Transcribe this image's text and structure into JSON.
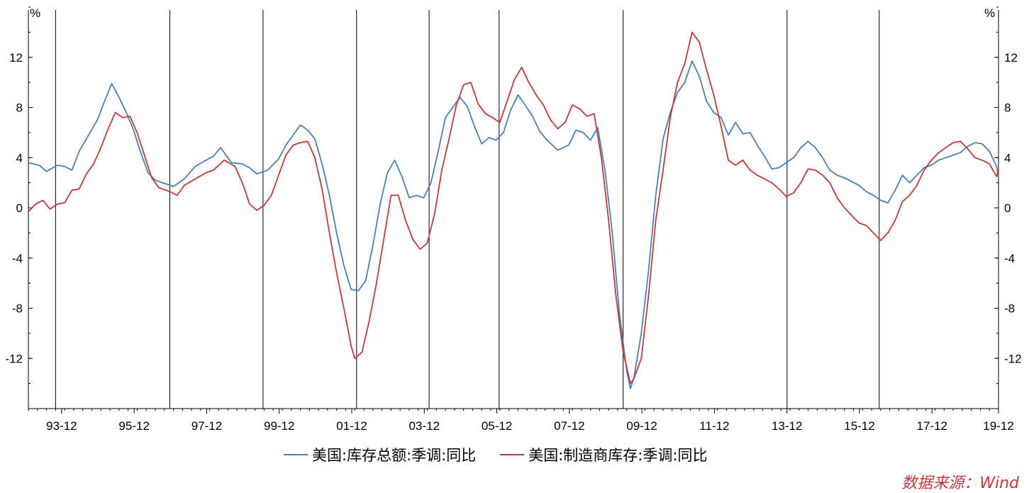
{
  "chart_data": {
    "type": "line",
    "y_unit_left": "%",
    "y_unit_right": "%",
    "ylim": [
      -16,
      16
    ],
    "y_ticks": [
      12,
      8,
      4,
      0,
      -4,
      -8,
      -12
    ],
    "x_range": [
      1993.0,
      2019.75
    ],
    "x_tick_labels": [
      "93-12",
      "95-12",
      "97-12",
      "99-12",
      "01-12",
      "03-12",
      "05-12",
      "07-12",
      "09-12",
      "11-12",
      "13-12",
      "15-12",
      "17-12",
      "19-12"
    ],
    "x_tick_values": [
      1993.917,
      1995.917,
      1997.917,
      1999.917,
      2001.917,
      2003.917,
      2005.917,
      2007.917,
      2009.917,
      2011.917,
      2013.917,
      2015.917,
      2017.917,
      2019.917
    ],
    "vertical_markers": [
      1993.75,
      1996.9,
      1999.47,
      2002.05,
      2004.05,
      2005.98,
      2009.4,
      2013.92,
      2016.46,
      2019.75
    ],
    "series": [
      {
        "name": "美国:库存总额:季调:同比",
        "color": "#4a7fb5",
        "points": [
          [
            1993.0,
            3.6
          ],
          [
            1993.3,
            3.4
          ],
          [
            1993.5,
            2.9
          ],
          [
            1993.8,
            3.4
          ],
          [
            1994.0,
            3.3
          ],
          [
            1994.2,
            3.0
          ],
          [
            1994.4,
            4.5
          ],
          [
            1994.7,
            6.0
          ],
          [
            1994.9,
            7.0
          ],
          [
            1995.1,
            8.5
          ],
          [
            1995.3,
            9.9
          ],
          [
            1995.5,
            8.8
          ],
          [
            1995.7,
            7.6
          ],
          [
            1995.9,
            6.2
          ],
          [
            1996.1,
            4.4
          ],
          [
            1996.3,
            2.8
          ],
          [
            1996.5,
            2.2
          ],
          [
            1996.8,
            1.9
          ],
          [
            1997.0,
            1.7
          ],
          [
            1997.3,
            2.3
          ],
          [
            1997.6,
            3.3
          ],
          [
            1997.9,
            3.8
          ],
          [
            1998.1,
            4.1
          ],
          [
            1998.3,
            4.8
          ],
          [
            1998.6,
            3.6
          ],
          [
            1998.9,
            3.5
          ],
          [
            1999.1,
            3.2
          ],
          [
            1999.3,
            2.7
          ],
          [
            1999.6,
            3.0
          ],
          [
            1999.9,
            3.9
          ],
          [
            2000.1,
            5.0
          ],
          [
            2000.3,
            5.8
          ],
          [
            2000.5,
            6.6
          ],
          [
            2000.7,
            6.2
          ],
          [
            2000.9,
            5.5
          ],
          [
            2001.1,
            3.5
          ],
          [
            2001.3,
            1.0
          ],
          [
            2001.5,
            -2.0
          ],
          [
            2001.7,
            -4.6
          ],
          [
            2001.9,
            -6.5
          ],
          [
            2002.1,
            -6.6
          ],
          [
            2002.3,
            -5.8
          ],
          [
            2002.5,
            -3.0
          ],
          [
            2002.7,
            0.3
          ],
          [
            2002.9,
            2.8
          ],
          [
            2003.1,
            3.8
          ],
          [
            2003.3,
            2.5
          ],
          [
            2003.5,
            0.8
          ],
          [
            2003.7,
            1.0
          ],
          [
            2003.9,
            0.8
          ],
          [
            2004.1,
            2.0
          ],
          [
            2004.3,
            4.5
          ],
          [
            2004.5,
            7.2
          ],
          [
            2004.7,
            8.0
          ],
          [
            2004.9,
            8.8
          ],
          [
            2005.1,
            8.1
          ],
          [
            2005.3,
            6.5
          ],
          [
            2005.5,
            5.1
          ],
          [
            2005.7,
            5.6
          ],
          [
            2005.9,
            5.4
          ],
          [
            2006.1,
            6.0
          ],
          [
            2006.3,
            7.8
          ],
          [
            2006.5,
            9.0
          ],
          [
            2006.7,
            8.2
          ],
          [
            2006.9,
            7.3
          ],
          [
            2007.1,
            6.1
          ],
          [
            2007.3,
            5.4
          ],
          [
            2007.6,
            4.6
          ],
          [
            2007.9,
            5.0
          ],
          [
            2008.1,
            6.2
          ],
          [
            2008.3,
            6.0
          ],
          [
            2008.5,
            5.4
          ],
          [
            2008.7,
            6.4
          ],
          [
            2008.9,
            3.0
          ],
          [
            2009.1,
            -2.0
          ],
          [
            2009.3,
            -8.5
          ],
          [
            2009.5,
            -13.0
          ],
          [
            2009.6,
            -14.4
          ],
          [
            2009.7,
            -13.5
          ],
          [
            2009.9,
            -10.0
          ],
          [
            2010.1,
            -5.0
          ],
          [
            2010.3,
            1.0
          ],
          [
            2010.5,
            5.5
          ],
          [
            2010.7,
            7.6
          ],
          [
            2010.9,
            9.2
          ],
          [
            2011.1,
            10.0
          ],
          [
            2011.3,
            11.7
          ],
          [
            2011.5,
            10.5
          ],
          [
            2011.7,
            8.5
          ],
          [
            2011.9,
            7.6
          ],
          [
            2012.1,
            7.2
          ],
          [
            2012.3,
            5.8
          ],
          [
            2012.5,
            6.8
          ],
          [
            2012.7,
            5.9
          ],
          [
            2012.9,
            6.0
          ],
          [
            2013.1,
            5.0
          ],
          [
            2013.3,
            4.1
          ],
          [
            2013.5,
            3.1
          ],
          [
            2013.7,
            3.2
          ],
          [
            2013.9,
            3.6
          ],
          [
            2014.1,
            4.0
          ],
          [
            2014.3,
            4.8
          ],
          [
            2014.5,
            5.3
          ],
          [
            2014.7,
            4.8
          ],
          [
            2014.9,
            4.0
          ],
          [
            2015.1,
            3.0
          ],
          [
            2015.3,
            2.6
          ],
          [
            2015.5,
            2.4
          ],
          [
            2015.7,
            2.1
          ],
          [
            2015.9,
            1.8
          ],
          [
            2016.1,
            1.3
          ],
          [
            2016.3,
            1.0
          ],
          [
            2016.5,
            0.6
          ],
          [
            2016.7,
            0.4
          ],
          [
            2016.9,
            1.4
          ],
          [
            2017.1,
            2.6
          ],
          [
            2017.3,
            2.0
          ],
          [
            2017.5,
            2.6
          ],
          [
            2017.7,
            3.2
          ],
          [
            2017.9,
            3.4
          ],
          [
            2018.1,
            3.8
          ],
          [
            2018.3,
            4.0
          ],
          [
            2018.5,
            4.2
          ],
          [
            2018.7,
            4.4
          ],
          [
            2018.9,
            4.9
          ],
          [
            2019.1,
            5.2
          ],
          [
            2019.3,
            5.1
          ],
          [
            2019.5,
            4.5
          ],
          [
            2019.7,
            3.3
          ],
          [
            2019.75,
            2.4
          ]
        ]
      },
      {
        "name": "美国:制造商库存:季调:同比",
        "color": "#c0393b",
        "points": [
          [
            1993.0,
            -0.3
          ],
          [
            1993.2,
            0.3
          ],
          [
            1993.4,
            0.6
          ],
          [
            1993.6,
            -0.1
          ],
          [
            1993.8,
            0.3
          ],
          [
            1994.0,
            0.4
          ],
          [
            1994.2,
            1.4
          ],
          [
            1994.4,
            1.5
          ],
          [
            1994.6,
            2.7
          ],
          [
            1994.8,
            3.5
          ],
          [
            1995.0,
            4.8
          ],
          [
            1995.2,
            6.3
          ],
          [
            1995.4,
            7.6
          ],
          [
            1995.6,
            7.2
          ],
          [
            1995.8,
            7.3
          ],
          [
            1996.0,
            6.0
          ],
          [
            1996.2,
            4.2
          ],
          [
            1996.4,
            2.4
          ],
          [
            1996.6,
            1.6
          ],
          [
            1996.9,
            1.3
          ],
          [
            1997.1,
            1.0
          ],
          [
            1997.3,
            1.8
          ],
          [
            1997.6,
            2.3
          ],
          [
            1997.9,
            2.8
          ],
          [
            1998.1,
            3.0
          ],
          [
            1998.4,
            3.8
          ],
          [
            1998.7,
            3.3
          ],
          [
            1998.9,
            2.0
          ],
          [
            1999.1,
            0.3
          ],
          [
            1999.3,
            -0.2
          ],
          [
            1999.5,
            0.2
          ],
          [
            1999.7,
            1.0
          ],
          [
            1999.9,
            2.6
          ],
          [
            2000.1,
            4.2
          ],
          [
            2000.3,
            5.0
          ],
          [
            2000.5,
            5.2
          ],
          [
            2000.7,
            5.3
          ],
          [
            2000.9,
            4.0
          ],
          [
            2001.1,
            1.5
          ],
          [
            2001.3,
            -2.0
          ],
          [
            2001.5,
            -5.2
          ],
          [
            2001.7,
            -8.0
          ],
          [
            2001.9,
            -11.0
          ],
          [
            2002.0,
            -12.0
          ],
          [
            2002.2,
            -11.5
          ],
          [
            2002.4,
            -9.0
          ],
          [
            2002.6,
            -6.0
          ],
          [
            2002.8,
            -2.5
          ],
          [
            2003.0,
            1.0
          ],
          [
            2003.2,
            1.0
          ],
          [
            2003.4,
            -1.0
          ],
          [
            2003.6,
            -2.5
          ],
          [
            2003.8,
            -3.3
          ],
          [
            2004.0,
            -2.8
          ],
          [
            2004.2,
            -0.5
          ],
          [
            2004.4,
            3.0
          ],
          [
            2004.6,
            5.5
          ],
          [
            2004.8,
            8.2
          ],
          [
            2005.0,
            9.8
          ],
          [
            2005.2,
            10.0
          ],
          [
            2005.4,
            8.3
          ],
          [
            2005.6,
            7.5
          ],
          [
            2005.8,
            7.2
          ],
          [
            2006.0,
            6.8
          ],
          [
            2006.2,
            8.5
          ],
          [
            2006.4,
            10.2
          ],
          [
            2006.6,
            11.2
          ],
          [
            2006.8,
            10.0
          ],
          [
            2007.0,
            9.0
          ],
          [
            2007.2,
            8.2
          ],
          [
            2007.4,
            7.0
          ],
          [
            2007.6,
            6.3
          ],
          [
            2007.8,
            6.8
          ],
          [
            2008.0,
            8.2
          ],
          [
            2008.2,
            7.9
          ],
          [
            2008.4,
            7.3
          ],
          [
            2008.6,
            7.5
          ],
          [
            2008.8,
            4.0
          ],
          [
            2009.0,
            -1.0
          ],
          [
            2009.2,
            -7.0
          ],
          [
            2009.4,
            -11.5
          ],
          [
            2009.6,
            -14.0
          ],
          [
            2009.7,
            -13.6
          ],
          [
            2009.9,
            -12.0
          ],
          [
            2010.1,
            -7.0
          ],
          [
            2010.3,
            -1.0
          ],
          [
            2010.5,
            3.0
          ],
          [
            2010.7,
            7.2
          ],
          [
            2010.9,
            10.0
          ],
          [
            2011.1,
            11.5
          ],
          [
            2011.3,
            14.0
          ],
          [
            2011.5,
            13.2
          ],
          [
            2011.7,
            11.0
          ],
          [
            2011.9,
            9.0
          ],
          [
            2012.1,
            6.5
          ],
          [
            2012.3,
            3.8
          ],
          [
            2012.5,
            3.4
          ],
          [
            2012.7,
            3.8
          ],
          [
            2012.9,
            3.0
          ],
          [
            2013.1,
            2.6
          ],
          [
            2013.3,
            2.3
          ],
          [
            2013.5,
            2.0
          ],
          [
            2013.7,
            1.5
          ],
          [
            2013.9,
            0.9
          ],
          [
            2014.1,
            1.2
          ],
          [
            2014.3,
            2.0
          ],
          [
            2014.5,
            3.1
          ],
          [
            2014.7,
            3.0
          ],
          [
            2014.9,
            2.6
          ],
          [
            2015.1,
            2.0
          ],
          [
            2015.3,
            0.8
          ],
          [
            2015.5,
            0.0
          ],
          [
            2015.7,
            -0.6
          ],
          [
            2015.9,
            -1.2
          ],
          [
            2016.1,
            -1.4
          ],
          [
            2016.3,
            -2.0
          ],
          [
            2016.5,
            -2.6
          ],
          [
            2016.7,
            -2.0
          ],
          [
            2016.9,
            -1.0
          ],
          [
            2017.1,
            0.5
          ],
          [
            2017.3,
            1.0
          ],
          [
            2017.5,
            1.8
          ],
          [
            2017.7,
            3.0
          ],
          [
            2017.9,
            3.8
          ],
          [
            2018.1,
            4.4
          ],
          [
            2018.3,
            4.8
          ],
          [
            2018.5,
            5.2
          ],
          [
            2018.7,
            5.3
          ],
          [
            2018.9,
            4.7
          ],
          [
            2019.1,
            4.0
          ],
          [
            2019.3,
            3.8
          ],
          [
            2019.5,
            3.5
          ],
          [
            2019.7,
            2.5
          ],
          [
            2019.75,
            3.0
          ]
        ]
      }
    ]
  },
  "source_label": "数据来源：Wind"
}
